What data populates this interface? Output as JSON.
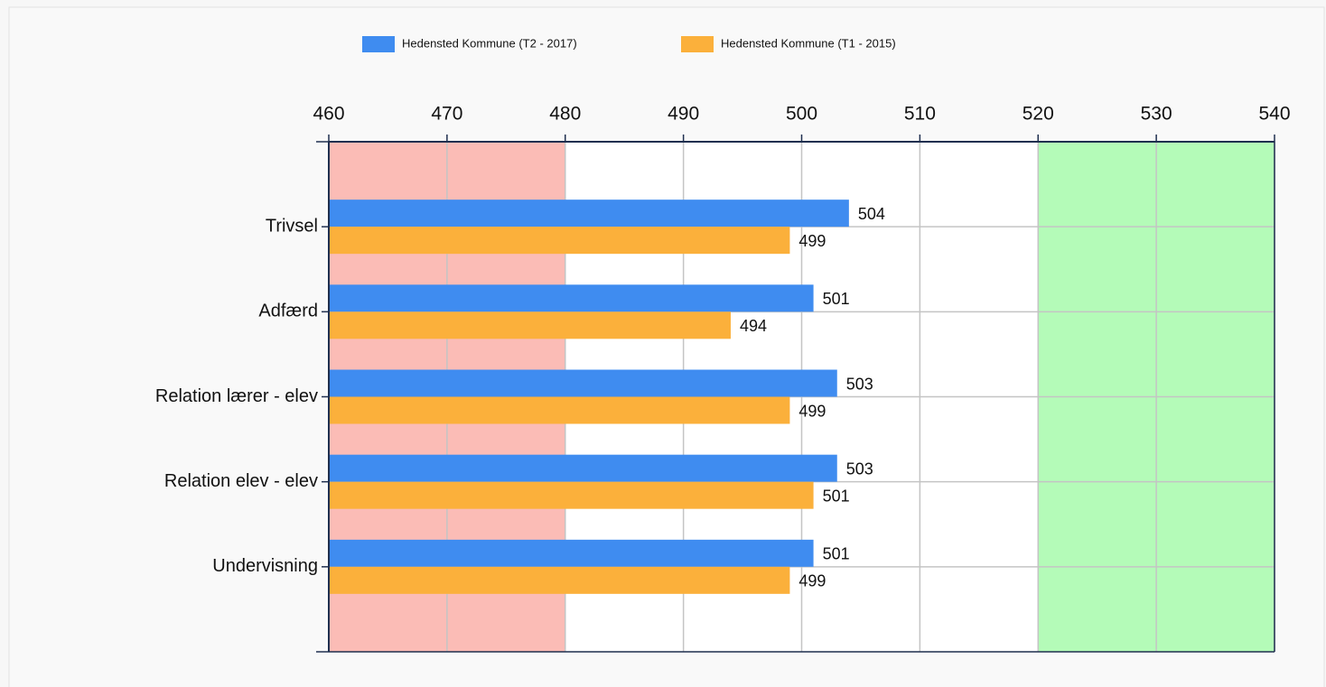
{
  "chart_data": {
    "type": "barh",
    "categories": [
      "Trivsel",
      "Adfærd",
      "Relation lærer - elev",
      "Relation elev - elev",
      "Undervisning"
    ],
    "series": [
      {
        "name": "Hedensted Kommune (T2 - 2017)",
        "color": "#3f8cf0",
        "values": [
          504,
          501,
          503,
          503,
          501
        ]
      },
      {
        "name": "Hedensted Kommune (T1 - 2015)",
        "color": "#fbb03b",
        "values": [
          499,
          494,
          499,
          501,
          499
        ]
      }
    ],
    "xlim": [
      460,
      540
    ],
    "xticks": [
      460,
      470,
      480,
      490,
      500,
      510,
      520,
      530,
      540
    ],
    "grid": true,
    "bands": [
      {
        "from": 460,
        "to": 480,
        "color": "#fbbcb6"
      },
      {
        "from": 520,
        "to": 540,
        "color": "#b4fbb8"
      }
    ]
  }
}
